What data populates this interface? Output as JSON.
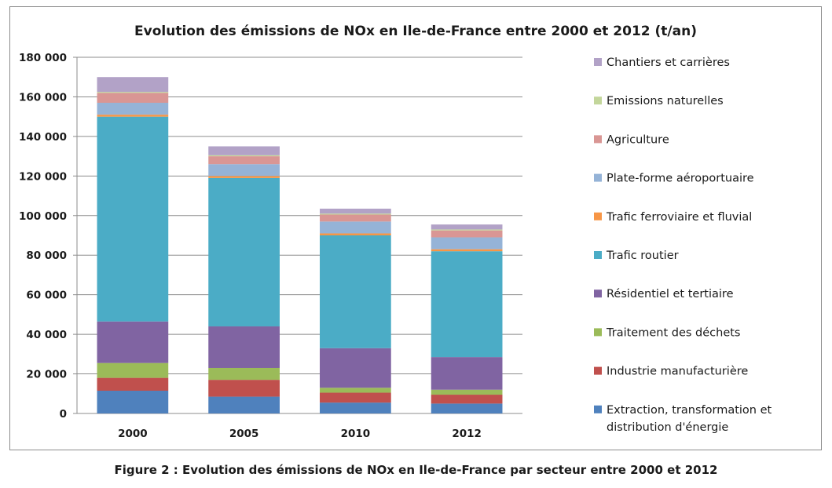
{
  "caption": "Figure 2 : Evolution des émissions de NOx en Ile-de-France par secteur entre 2000 et 2012",
  "chart_data": {
    "type": "bar",
    "stacked": true,
    "title": "Evolution des émissions de NOx en Ile-de-France entre 2000 et 2012  (t/an)",
    "xlabel": "",
    "ylabel": "",
    "categories": [
      "2000",
      "2005",
      "2010",
      "2012"
    ],
    "ylim": [
      0,
      180000
    ],
    "yticks": [
      {
        "value": 0,
        "label": "0"
      },
      {
        "value": 20000,
        "label": "20 000"
      },
      {
        "value": 40000,
        "label": "40 000"
      },
      {
        "value": 60000,
        "label": "60 000"
      },
      {
        "value": 80000,
        "label": "80 000"
      },
      {
        "value": 100000,
        "label": "100 000"
      },
      {
        "value": 120000,
        "label": "120 000"
      },
      {
        "value": 140000,
        "label": "140 000"
      },
      {
        "value": 160000,
        "label": "160 000"
      },
      {
        "value": 180000,
        "label": "180 000"
      }
    ],
    "grid": true,
    "legend_position": "right",
    "series": [
      {
        "name": "Extraction, transformation et distribution d'énergie",
        "color": "#4f81bd",
        "values": [
          11500,
          8500,
          5500,
          5000
        ]
      },
      {
        "name": "Industrie manufacturière",
        "color": "#c0504d",
        "values": [
          6500,
          8500,
          5000,
          4500
        ]
      },
      {
        "name": "Traitement des déchets",
        "color": "#9bbb59",
        "values": [
          7500,
          6000,
          2500,
          2500
        ]
      },
      {
        "name": "Résidentiel et tertiaire",
        "color": "#8064a2",
        "values": [
          21000,
          21000,
          20000,
          16500
        ]
      },
      {
        "name": "Trafic routier",
        "color": "#4bacc6",
        "values": [
          103500,
          75000,
          57000,
          53500
        ]
      },
      {
        "name": "Trafic ferroviaire et fluvial",
        "color": "#f79646",
        "values": [
          1000,
          1000,
          1000,
          1000
        ]
      },
      {
        "name": "Plate-forme aéroportuaire",
        "color": "#95b3d7",
        "values": [
          6000,
          6000,
          6000,
          6000
        ]
      },
      {
        "name": "Agriculture",
        "color": "#d99694",
        "values": [
          5000,
          4000,
          3500,
          3500
        ]
      },
      {
        "name": "Emissions naturelles",
        "color": "#c3d69b",
        "values": [
          500,
          500,
          500,
          500
        ]
      },
      {
        "name": "Chantiers et carrières",
        "color": "#b2a2c7",
        "values": [
          7500,
          4500,
          2500,
          2500
        ]
      }
    ]
  }
}
